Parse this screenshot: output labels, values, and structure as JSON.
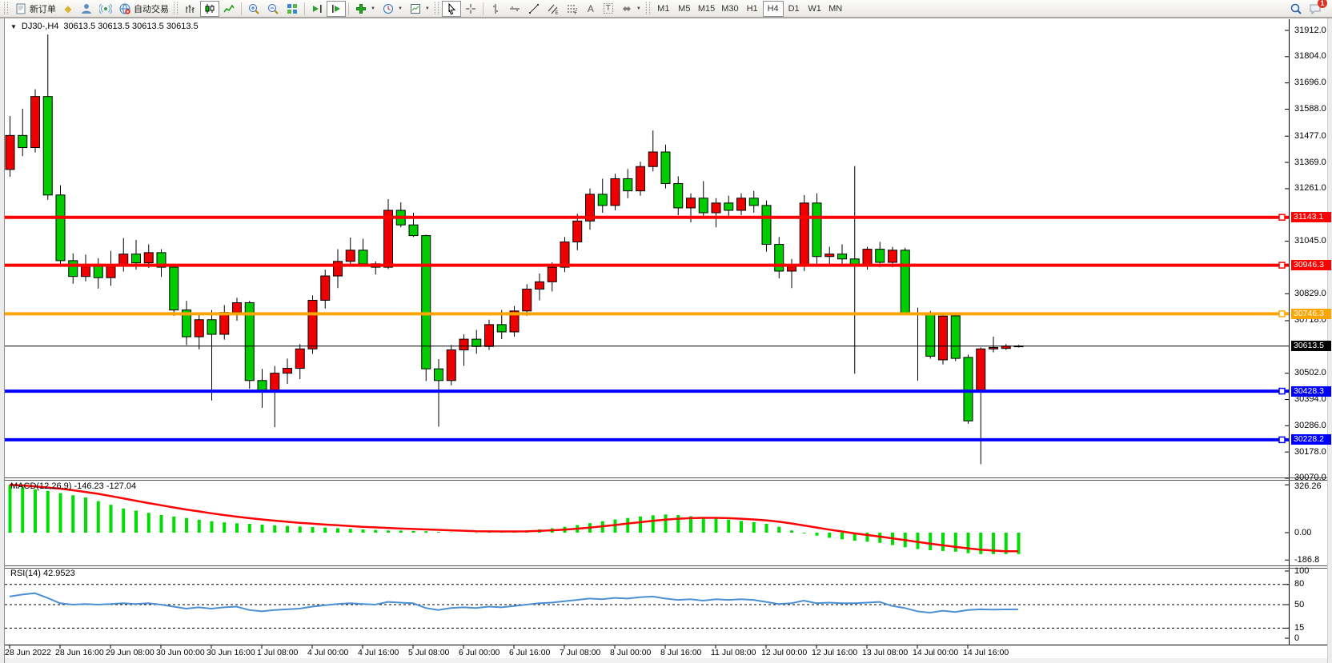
{
  "toolbar": {
    "new_order": "新订单",
    "auto_trading": "自动交易",
    "timeframes": [
      "M1",
      "M5",
      "M15",
      "M30",
      "H1",
      "H4",
      "D1",
      "W1",
      "MN"
    ],
    "active_timeframe": "H4",
    "chat_badge": "1",
    "glyphs": {
      "diamond": "◆",
      "caret": "▼",
      "text_tool": "A",
      "label_tool": "T",
      "channel_letter": "E",
      "fibo_letter": "F"
    }
  },
  "window": {
    "collapse_arrow": "▼",
    "symbol_title": "DJ30-,H4",
    "ohlc": "30613.5 30613.5 30613.5 30613.5"
  },
  "price_scale": {
    "ticks": [
      "31912.0",
      "31804.0",
      "31696.0",
      "31588.0",
      "31477.0",
      "31369.0",
      "31261.0",
      "31045.0",
      "30829.0",
      "30718.0",
      "30502.0",
      "30394.0",
      "30286.0",
      "30178.0",
      "30070.0"
    ],
    "badges": [
      {
        "text": "31143.1",
        "price": 31143.1,
        "color": "#ff0000"
      },
      {
        "text": "30946.3",
        "price": 30946.3,
        "color": "#ff0000"
      },
      {
        "text": "30746.3",
        "price": 30746.3,
        "color": "#ffa500"
      },
      {
        "text": "30613.5",
        "price": 30613.5,
        "color": "#000000",
        "current": true
      },
      {
        "text": "30428.3",
        "price": 30428.3,
        "color": "#0000ff"
      },
      {
        "text": "30228.2",
        "price": 30228.2,
        "color": "#0000ff"
      }
    ]
  },
  "time_scale": {
    "labels": [
      "28 Jun 2022",
      "28 Jun 16:00",
      "29 Jun 08:00",
      "30 Jun 00:00",
      "30 Jun 16:00",
      "1 Jul 08:00",
      "4 Jul 00:00",
      "4 Jul 16:00",
      "5 Jul 08:00",
      "6 Jul 00:00",
      "6 Jul 16:00",
      "7 Jul 08:00",
      "8 Jul 00:00",
      "8 Jul 16:00",
      "11 Jul 08:00",
      "12 Jul 00:00",
      "12 Jul 16:00",
      "13 Jul 08:00",
      "14 Jul 00:00",
      "14 Jul 16:00"
    ]
  },
  "chart_data": {
    "type": "candlestick",
    "symbol": "DJ30-",
    "period": "H4",
    "up_color": "#ee0000",
    "down_color": "#00cc00",
    "wick_color": "#000000",
    "y_range": {
      "top": 31912,
      "bottom": 30070
    },
    "current_price": 30613.5,
    "horizontal_lines": [
      {
        "price": 31143.1,
        "color": "#ff0000",
        "width": 4
      },
      {
        "price": 30946.3,
        "color": "#ff0000",
        "width": 4
      },
      {
        "price": 30746.3,
        "color": "#ffa500",
        "width": 4
      },
      {
        "price": 30428.3,
        "color": "#0000ff",
        "width": 4
      },
      {
        "price": 30228.2,
        "color": "#0000ff",
        "width": 4
      }
    ],
    "candles": [
      [
        31340,
        31560,
        31310,
        31480
      ],
      [
        31480,
        31590,
        31395,
        31430
      ],
      [
        31430,
        31670,
        31410,
        31640
      ],
      [
        31640,
        31895,
        31215,
        31235
      ],
      [
        31235,
        31275,
        30940,
        30965
      ],
      [
        30965,
        30995,
        30870,
        30900
      ],
      [
        30900,
        30990,
        30880,
        30950
      ],
      [
        30950,
        30975,
        30850,
        30895
      ],
      [
        30895,
        31005,
        30862,
        30948
      ],
      [
        30948,
        31058,
        30920,
        30992
      ],
      [
        30992,
        31050,
        30928,
        30956
      ],
      [
        30956,
        31032,
        30935,
        30998
      ],
      [
        30998,
        31012,
        30898,
        30938
      ],
      [
        30938,
        30952,
        30738,
        30762
      ],
      [
        30762,
        30800,
        30618,
        30652
      ],
      [
        30652,
        30752,
        30600,
        30722
      ],
      [
        30722,
        30762,
        30390,
        30662
      ],
      [
        30662,
        30782,
        30640,
        30752
      ],
      [
        30752,
        30812,
        30718,
        30792
      ],
      [
        30792,
        30800,
        30438,
        30472
      ],
      [
        30472,
        30520,
        30360,
        30432
      ],
      [
        30432,
        30532,
        30280,
        30502
      ],
      [
        30502,
        30562,
        30458,
        30522
      ],
      [
        30522,
        30622,
        30478,
        30602
      ],
      [
        30602,
        30822,
        30582,
        30802
      ],
      [
        30802,
        30928,
        30768,
        30902
      ],
      [
        30902,
        31012,
        30852,
        30962
      ],
      [
        30962,
        31060,
        30940,
        31008
      ],
      [
        31008,
        31055,
        30942,
        30952
      ],
      [
        30952,
        30962,
        30908,
        30938
      ],
      [
        30938,
        31218,
        30930,
        31172
      ],
      [
        31172,
        31205,
        31102,
        31112
      ],
      [
        31112,
        31162,
        31062,
        31068
      ],
      [
        31068,
        31072,
        30470,
        30520
      ],
      [
        30520,
        30560,
        30282,
        30472
      ],
      [
        30472,
        30618,
        30452,
        30598
      ],
      [
        30598,
        30662,
        30532,
        30642
      ],
      [
        30642,
        30680,
        30582,
        30612
      ],
      [
        30612,
        30722,
        30598,
        30702
      ],
      [
        30702,
        30762,
        30642,
        30672
      ],
      [
        30672,
        30778,
        30652,
        30758
      ],
      [
        30758,
        30868,
        30738,
        30848
      ],
      [
        30848,
        30912,
        30802,
        30878
      ],
      [
        30878,
        30958,
        30838,
        30938
      ],
      [
        30938,
        31062,
        30918,
        31042
      ],
      [
        31042,
        31158,
        31008,
        31128
      ],
      [
        31128,
        31262,
        31092,
        31238
      ],
      [
        31238,
        31302,
        31162,
        31192
      ],
      [
        31192,
        31322,
        31172,
        31302
      ],
      [
        31302,
        31342,
        31222,
        31252
      ],
      [
        31252,
        31372,
        31232,
        31352
      ],
      [
        31352,
        31500,
        31332,
        31412
      ],
      [
        31412,
        31442,
        31262,
        31282
      ],
      [
        31282,
        31312,
        31152,
        31182
      ],
      [
        31182,
        31242,
        31122,
        31222
      ],
      [
        31222,
        31292,
        31142,
        31162
      ],
      [
        31162,
        31222,
        31102,
        31202
      ],
      [
        31202,
        31232,
        31142,
        31172
      ],
      [
        31172,
        31242,
        31152,
        31222
      ],
      [
        31222,
        31252,
        31162,
        31192
      ],
      [
        31192,
        31212,
        31002,
        31032
      ],
      [
        31032,
        31062,
        30892,
        30922
      ],
      [
        30922,
        30972,
        30852,
        30942
      ],
      [
        30942,
        31235,
        30922,
        31202
      ],
      [
        31202,
        31242,
        30952,
        30982
      ],
      [
        30982,
        31022,
        30942,
        30992
      ],
      [
        30992,
        31032,
        30952,
        30972
      ],
      [
        30972,
        31354,
        30500,
        30948
      ],
      [
        30948,
        31022,
        30928,
        31012
      ],
      [
        31012,
        31042,
        30938,
        30958
      ],
      [
        30958,
        31022,
        30938,
        31008
      ],
      [
        31008,
        31018,
        30742,
        30748
      ],
      [
        30748,
        30772,
        30471,
        30746
      ],
      [
        30746,
        30758,
        30562,
        30572
      ],
      [
        30557,
        30742,
        30538,
        30737
      ],
      [
        30738,
        30752,
        30552,
        30563
      ],
      [
        30567,
        30578,
        30294,
        30306
      ],
      [
        30424,
        30608,
        30128,
        30602
      ],
      [
        30602,
        30652,
        30588,
        30608
      ],
      [
        30604,
        30622,
        30598,
        30613.5
      ],
      [
        30614,
        30618,
        30608,
        30612
      ]
    ],
    "macd": {
      "label": "MACD(12,26,9) -146.23 -127.04",
      "histogram_color": "#00dd00",
      "signal_color": "#ff0000",
      "scale_labels": [
        "326.26",
        "0.00",
        "-186.8"
      ],
      "max": 326.26,
      "min": -186.8,
      "histogram": [
        326,
        310,
        295,
        285,
        270,
        255,
        240,
        215,
        190,
        165,
        150,
        135,
        120,
        110,
        100,
        88,
        78,
        70,
        64,
        60,
        55,
        50,
        46,
        42,
        38,
        35,
        30,
        26,
        22,
        18,
        15,
        14,
        12,
        10,
        5,
        2,
        0,
        -2,
        3,
        6,
        10,
        15,
        22,
        30,
        40,
        52,
        65,
        78,
        90,
        100,
        110,
        118,
        124,
        120,
        112,
        104,
        96,
        88,
        80,
        72,
        60,
        40,
        15,
        -5,
        -20,
        -35,
        -45,
        -55,
        -62,
        -70,
        -85,
        -100,
        -112,
        -120,
        -125,
        -130,
        -140,
        -146,
        -146.5,
        -146.23,
        -146.23
      ],
      "signal": [
        326,
        322,
        316,
        308,
        300,
        290,
        278,
        265,
        250,
        234,
        218,
        202,
        187,
        172,
        158,
        145,
        132,
        120,
        109,
        99,
        90,
        82,
        74,
        67,
        61,
        55,
        50,
        45,
        40,
        36,
        32,
        28,
        25,
        22,
        19,
        16,
        13,
        10,
        9,
        8,
        8,
        9,
        12,
        16,
        21,
        27,
        34,
        43,
        52,
        62,
        71,
        80,
        89,
        95,
        99,
        101,
        101,
        99,
        95,
        90,
        84,
        75,
        63,
        49,
        35,
        21,
        8,
        -5,
        -16,
        -27,
        -39,
        -51,
        -63,
        -75,
        -86,
        -97,
        -107,
        -116,
        -122,
        -127,
        -127.04
      ]
    },
    "rsi": {
      "label": "RSI(14) 42.9523",
      "color": "#4a90d2",
      "levels": [
        80,
        50,
        15
      ],
      "scale_labels": [
        "100",
        "80",
        "50",
        "15",
        "0"
      ],
      "values": [
        62,
        65,
        67,
        60,
        52,
        50,
        51,
        50,
        51,
        52,
        51,
        52,
        50,
        47,
        44,
        46,
        44,
        46,
        47,
        42,
        40,
        42,
        43,
        44,
        47,
        49,
        51,
        52,
        51,
        50,
        54,
        53,
        52,
        45,
        42,
        45,
        46,
        45,
        47,
        46,
        48,
        50,
        52,
        53,
        55,
        57,
        59,
        58,
        60,
        59,
        61,
        62,
        59,
        57,
        58,
        56,
        58,
        57,
        58,
        57,
        54,
        51,
        52,
        56,
        52,
        53,
        52,
        52,
        53,
        54,
        48,
        45,
        40,
        38,
        41,
        39,
        42,
        43,
        42.5,
        42.9,
        42.95
      ]
    }
  }
}
